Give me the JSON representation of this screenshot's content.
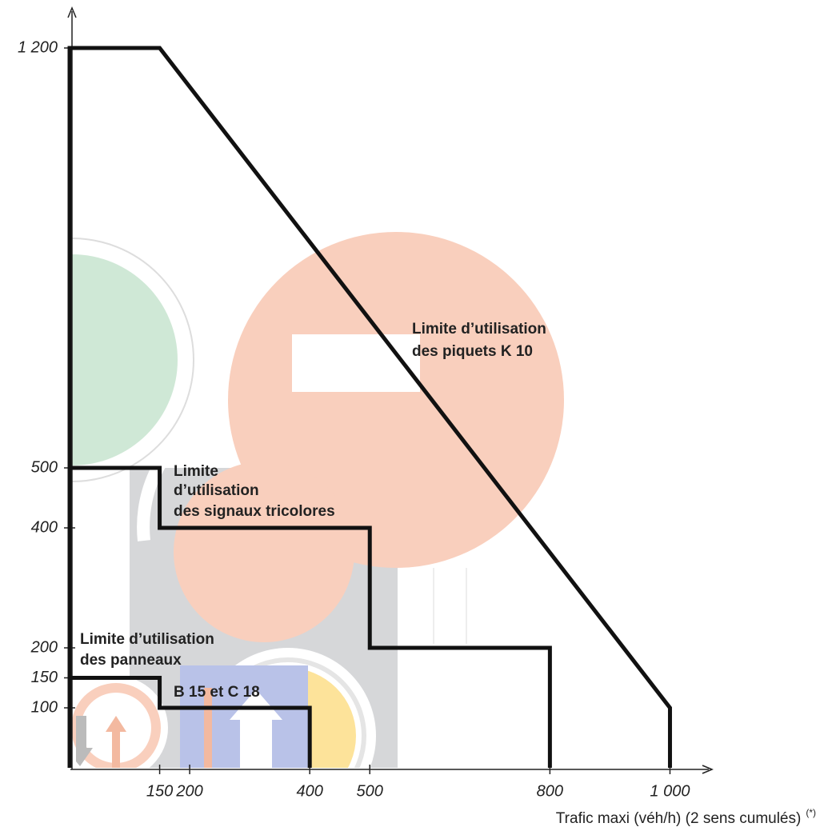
{
  "chart_data": {
    "type": "line",
    "x_label": "Trafic maxi (véh/h) (2 sens cumulés)",
    "x_label_note": "(*)",
    "xlim": [
      0,
      1070
    ],
    "ylim": [
      0,
      1250
    ],
    "xticks": [
      150,
      200,
      400,
      500,
      800,
      {
        "value": 1000,
        "label": "1 000"
      }
    ],
    "yticks": [
      100,
      150,
      200,
      400,
      500,
      {
        "value": 1200,
        "label": "1 200"
      }
    ],
    "series": [
      {
        "color": "#111111",
        "x": [
          0,
          0,
          150,
          1000,
          1000
        ],
        "y": [
          0,
          1200,
          1200,
          100,
          0
        ]
      },
      {
        "color": "#111111",
        "x": [
          0,
          150,
          150,
          500,
          500,
          800,
          800
        ],
        "y": [
          500,
          500,
          400,
          400,
          200,
          200,
          0
        ]
      },
      {
        "color": "#111111",
        "x": [
          0,
          150,
          150,
          400,
          400
        ],
        "y": [
          150,
          150,
          100,
          100,
          0
        ]
      }
    ],
    "annotations": [
      [
        "Limite d’utilisation",
        "des piquets K 10"
      ],
      [
        "Limite",
        "d’utilisation",
        "des signaux tricolores"
      ],
      [
        "Limite  d’utilisation",
        "des panneaux",
        "B 15 et C 18"
      ]
    ]
  }
}
